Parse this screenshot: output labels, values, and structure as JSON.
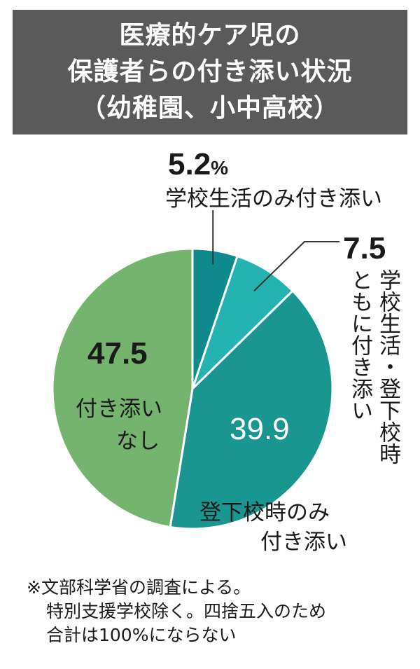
{
  "title": [
    "医療的ケア児の",
    "保護者らの付き添い状況",
    "（幼稚園、小中高校）"
  ],
  "chart_data": {
    "type": "pie",
    "unit": "%",
    "start": "12 o'clock",
    "direction": "clockwise",
    "slices": [
      {
        "label": "学校生活のみ付き添い",
        "value": 5.2,
        "value_text": "5.2",
        "color": "#0f8a8c"
      },
      {
        "label": "学校生活・登下校時ともに付き添い",
        "value": 7.5,
        "value_text": "7.5",
        "color": "#24b3b0"
      },
      {
        "label": "登下校時のみ付き添い",
        "value": 39.9,
        "value_text": "39.9",
        "color": "#1a9690"
      },
      {
        "label": "付き添いなし",
        "value": 47.5,
        "value_text": "47.5",
        "color": "#74b46e"
      }
    ]
  },
  "labels": {
    "s1_lines": [
      "学校生活のみ付き添い"
    ],
    "s2_lines": [
      "学校生活・登下校時",
      "ともに付き添い"
    ],
    "s3_lines": [
      "登下校時のみ",
      "付き添い"
    ],
    "s4_lines": [
      "付き添い",
      "なし"
    ]
  },
  "note_lines": [
    "※文部科学省の調査による。",
    "特別支援学校除く。四捨五入のため",
    "合計は100%にならない"
  ]
}
